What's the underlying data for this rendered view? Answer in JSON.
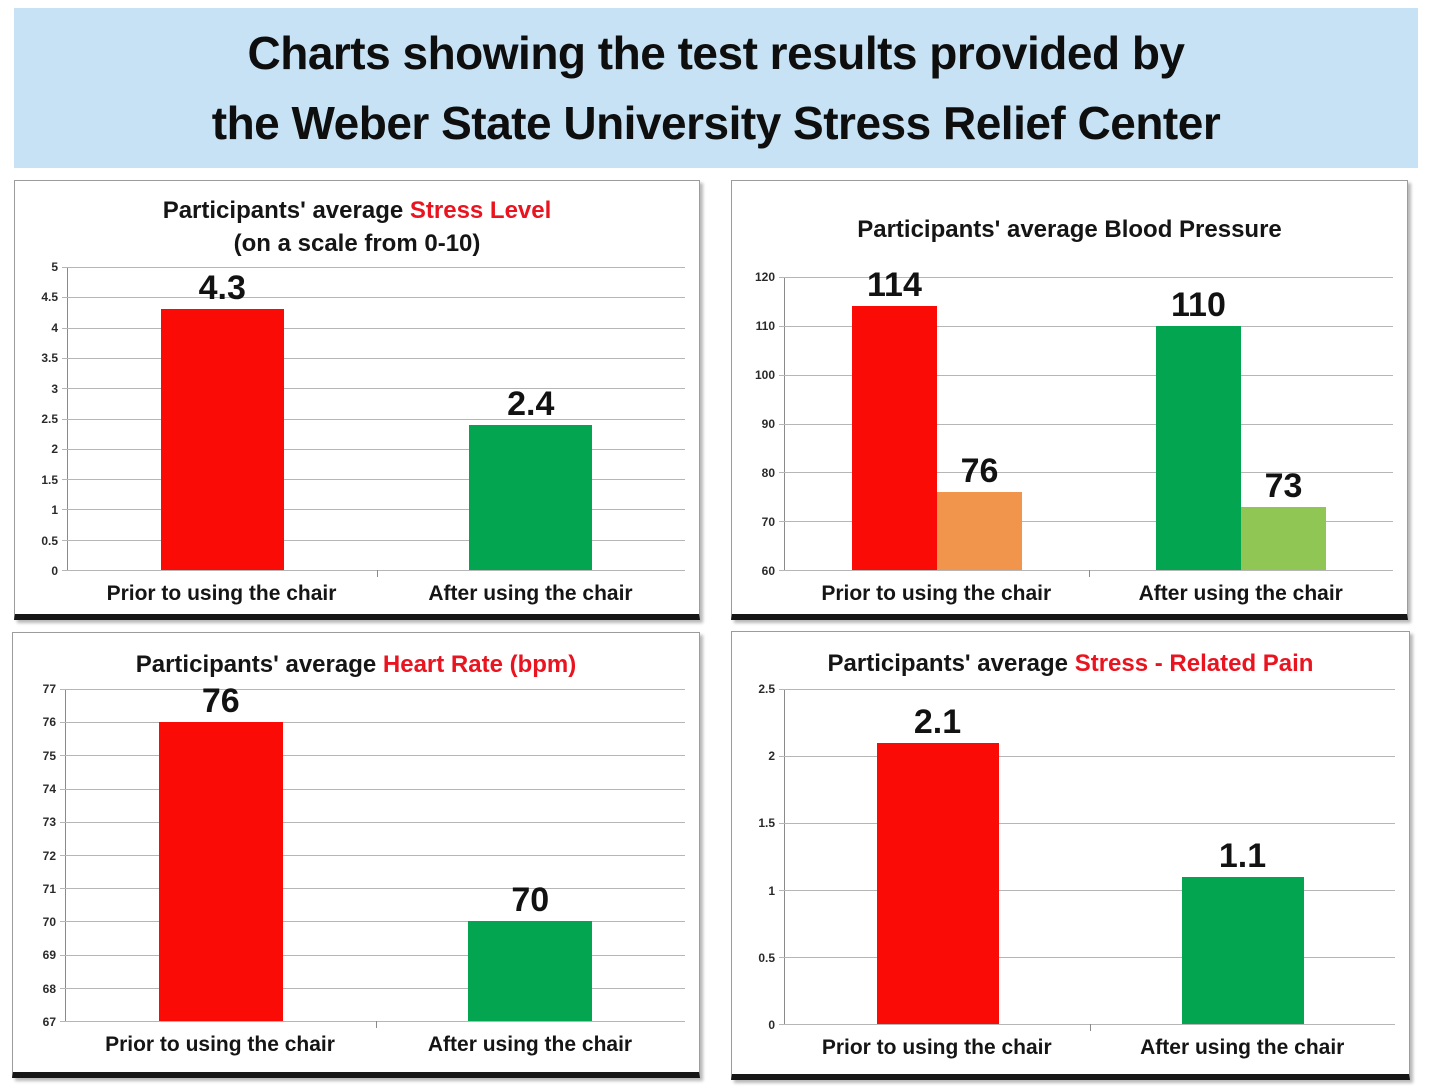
{
  "banner": {
    "title_line1": "Charts showing the test results provided by",
    "title_line2": "the Weber State University Stress Relief Center"
  },
  "palette": {
    "banner_background": "#c7e2f4",
    "title_highlight_red": "#e9141f",
    "bar_red": "#fb0b06",
    "bar_green": "#04a551",
    "bar_orange": "#f2954c",
    "bar_light_green": "#90c653"
  },
  "chart_data": [
    {
      "type": "bar",
      "title_parts": [
        {
          "text": "Participants' average ",
          "highlight": false
        },
        {
          "text": "Stress Level",
          "highlight": true
        }
      ],
      "subtitle": "(on a scale from 0-10)",
      "ylim": [
        0,
        5
      ],
      "grid": true,
      "legend": "none",
      "yticks": [
        {
          "value": 5,
          "label": "5"
        },
        {
          "value": 4.5,
          "label": "4.5"
        },
        {
          "value": 4,
          "label": "4"
        },
        {
          "value": 3.5,
          "label": "3.5"
        },
        {
          "value": 3,
          "label": "3"
        },
        {
          "value": 2.5,
          "label": "2.5"
        },
        {
          "value": 2,
          "label": "2"
        },
        {
          "value": 1.5,
          "label": "1.5"
        },
        {
          "value": 1,
          "label": "1"
        },
        {
          "value": 0.5,
          "label": "0.5"
        },
        {
          "value": 0,
          "label": "0"
        }
      ],
      "categories": [
        "Prior to using the chair",
        "After using the chair"
      ],
      "groups": [
        {
          "category": "Prior to using the chair",
          "bars": [
            {
              "value": 4.3,
              "label": "4.3",
              "color": "#fb0b06"
            }
          ]
        },
        {
          "category": "After using the chair",
          "bars": [
            {
              "value": 2.4,
              "label": "2.4",
              "color": "#04a551"
            }
          ]
        }
      ]
    },
    {
      "type": "bar",
      "title_parts": [
        {
          "text": "Participants' average Blood Pressure",
          "highlight": false
        }
      ],
      "subtitle": null,
      "ylim": [
        60,
        120
      ],
      "grid": true,
      "legend": "none",
      "yticks": [
        {
          "value": 120,
          "label": "120"
        },
        {
          "value": 110,
          "label": "110"
        },
        {
          "value": 100,
          "label": "100"
        },
        {
          "value": 90,
          "label": "90"
        },
        {
          "value": 80,
          "label": "80"
        },
        {
          "value": 70,
          "label": "70"
        },
        {
          "value": 60,
          "label": "60"
        }
      ],
      "categories": [
        "Prior to using the chair",
        "After using the chair"
      ],
      "groups": [
        {
          "category": "Prior to using the chair",
          "bars": [
            {
              "value": 114,
              "label": "114",
              "color": "#fb0b06"
            },
            {
              "value": 76,
              "label": "76",
              "color": "#f2954c"
            }
          ]
        },
        {
          "category": "After using the chair",
          "bars": [
            {
              "value": 110,
              "label": "110",
              "color": "#04a551"
            },
            {
              "value": 73,
              "label": "73",
              "color": "#90c653"
            }
          ]
        }
      ]
    },
    {
      "type": "bar",
      "title_parts": [
        {
          "text": "Participants' average ",
          "highlight": false
        },
        {
          "text": "Heart Rate (bpm)",
          "highlight": true
        }
      ],
      "subtitle": null,
      "ylim": [
        67,
        77
      ],
      "grid": true,
      "legend": "none",
      "yticks": [
        {
          "value": 77,
          "label": "77"
        },
        {
          "value": 76,
          "label": "76"
        },
        {
          "value": 75,
          "label": "75"
        },
        {
          "value": 74,
          "label": "74"
        },
        {
          "value": 73,
          "label": "73"
        },
        {
          "value": 72,
          "label": "72"
        },
        {
          "value": 71,
          "label": "71"
        },
        {
          "value": 70,
          "label": "70"
        },
        {
          "value": 69,
          "label": "69"
        },
        {
          "value": 68,
          "label": "68"
        },
        {
          "value": 67,
          "label": "67"
        }
      ],
      "categories": [
        "Prior to using the chair",
        "After using the chair"
      ],
      "groups": [
        {
          "category": "Prior to using the chair",
          "bars": [
            {
              "value": 76,
              "label": "76",
              "color": "#fb0b06"
            }
          ]
        },
        {
          "category": "After using the chair",
          "bars": [
            {
              "value": 70,
              "label": "70",
              "color": "#04a551"
            }
          ]
        }
      ]
    },
    {
      "type": "bar",
      "title_parts": [
        {
          "text": "Participants' average ",
          "highlight": false
        },
        {
          "text": "Stress - Related Pain",
          "highlight": true
        }
      ],
      "subtitle": null,
      "ylim": [
        0,
        2.5
      ],
      "grid": true,
      "legend": "none",
      "yticks": [
        {
          "value": 2.5,
          "label": "2.5"
        },
        {
          "value": 2,
          "label": "2"
        },
        {
          "value": 1.5,
          "label": "1.5"
        },
        {
          "value": 1,
          "label": "1"
        },
        {
          "value": 0.5,
          "label": "0.5"
        },
        {
          "value": 0,
          "label": "0"
        }
      ],
      "categories": [
        "Prior to using the chair",
        "After using the chair"
      ],
      "groups": [
        {
          "category": "Prior to using the chair",
          "bars": [
            {
              "value": 2.1,
              "label": "2.1",
              "color": "#fb0b06"
            }
          ]
        },
        {
          "category": "After using the chair",
          "bars": [
            {
              "value": 1.1,
              "label": "1.1",
              "color": "#04a551"
            }
          ]
        }
      ]
    }
  ]
}
